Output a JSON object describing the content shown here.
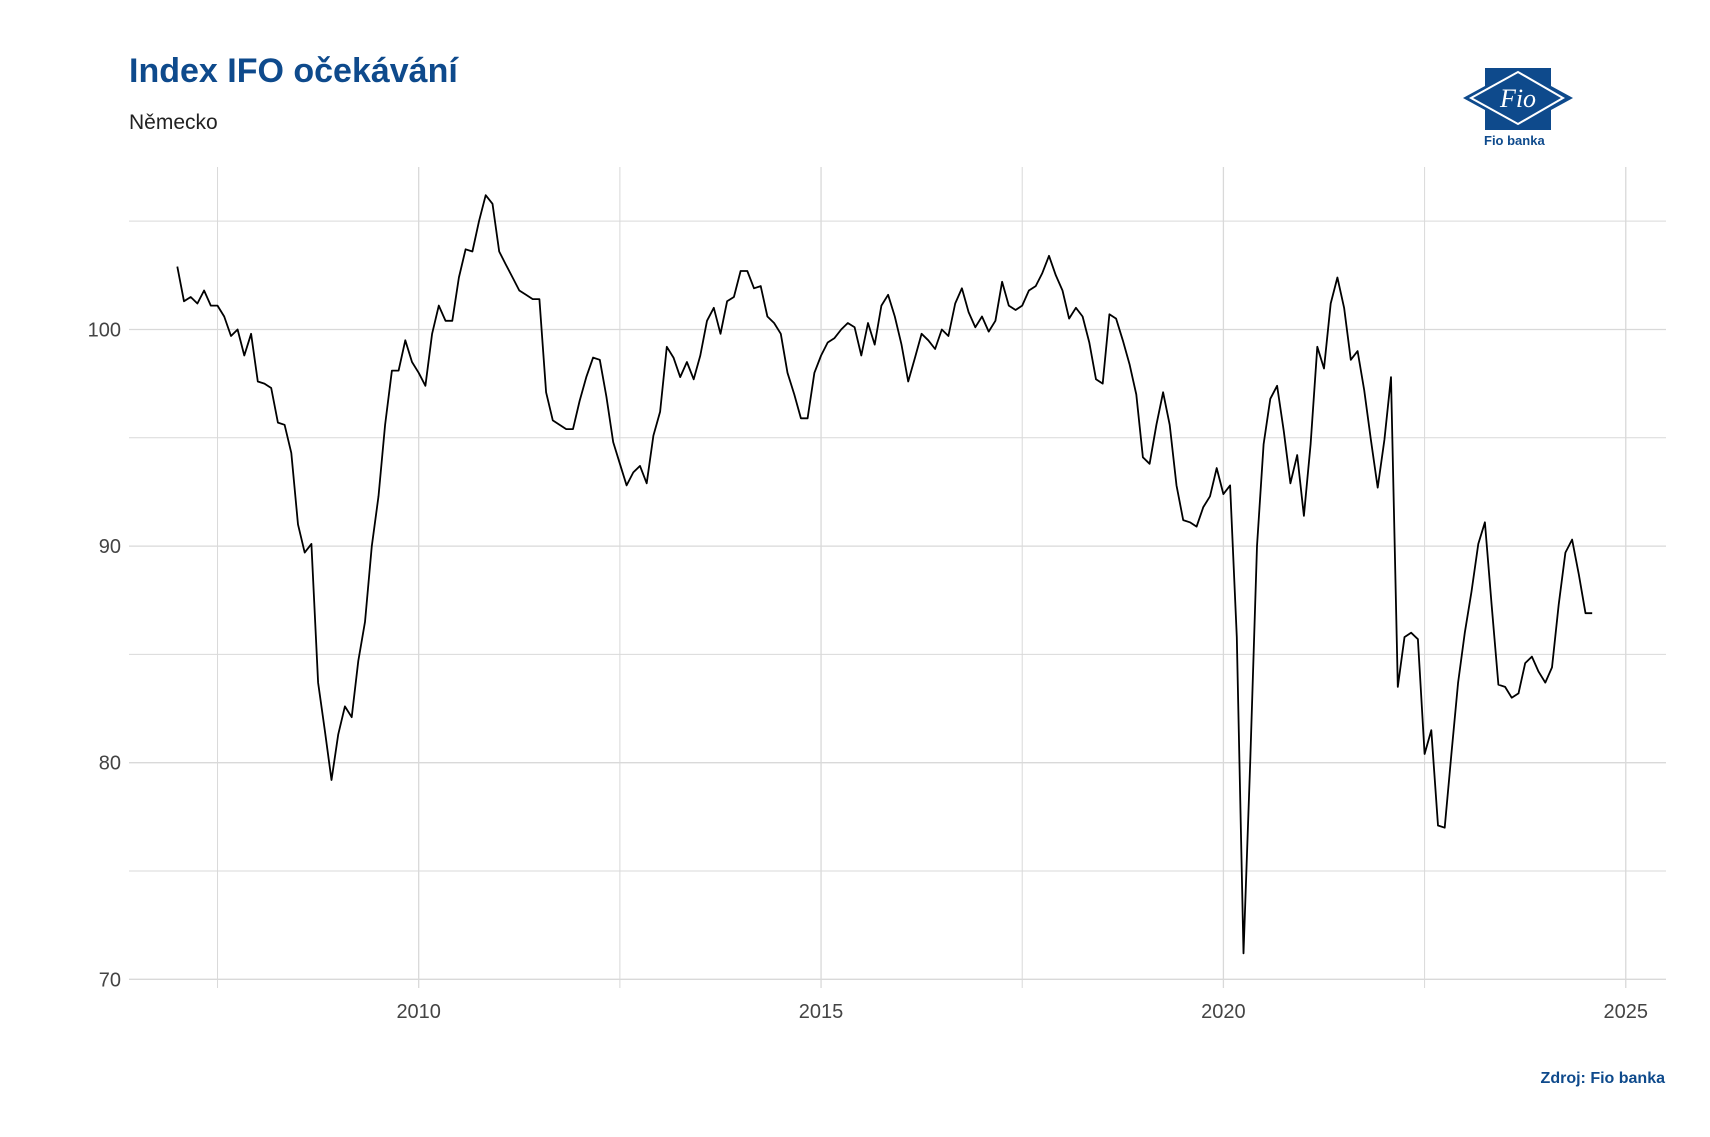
{
  "header": {
    "title": "Index IFO očekávání",
    "subtitle": "Německo"
  },
  "logo": {
    "text": "Fio banka",
    "mark": "Fio",
    "icon": "fio-banka-logo"
  },
  "footer": {
    "source": "Zdroj: Fio banka"
  },
  "colors": {
    "title": "#0e4a8c",
    "line": "#000000",
    "grid": "#d9d9d9"
  },
  "chart_data": {
    "type": "line",
    "title": "Index IFO očekávání",
    "subtitle": "Německo",
    "xlabel": "",
    "ylabel": "",
    "xlim": [
      2006.4,
      2025.5
    ],
    "ylim": [
      69.6,
      107.5
    ],
    "x_ticks": [
      2010,
      2015,
      2020,
      2025
    ],
    "y_ticks": [
      70,
      80,
      90,
      100
    ],
    "grid": true,
    "legend": "none",
    "x": [
      2007.0,
      2007.083,
      2007.167,
      2007.25,
      2007.333,
      2007.417,
      2007.5,
      2007.583,
      2007.667,
      2007.75,
      2007.833,
      2007.917,
      2008.0,
      2008.083,
      2008.167,
      2008.25,
      2008.333,
      2008.417,
      2008.5,
      2008.583,
      2008.667,
      2008.75,
      2008.833,
      2008.917,
      2009.0,
      2009.083,
      2009.167,
      2009.25,
      2009.333,
      2009.417,
      2009.5,
      2009.583,
      2009.667,
      2009.75,
      2009.833,
      2009.917,
      2010.0,
      2010.083,
      2010.167,
      2010.25,
      2010.333,
      2010.417,
      2010.5,
      2010.583,
      2010.667,
      2010.75,
      2010.833,
      2010.917,
      2011.0,
      2011.083,
      2011.167,
      2011.25,
      2011.333,
      2011.417,
      2011.5,
      2011.583,
      2011.667,
      2011.75,
      2011.833,
      2011.917,
      2012.0,
      2012.083,
      2012.167,
      2012.25,
      2012.333,
      2012.417,
      2012.5,
      2012.583,
      2012.667,
      2012.75,
      2012.833,
      2012.917,
      2013.0,
      2013.083,
      2013.167,
      2013.25,
      2013.333,
      2013.417,
      2013.5,
      2013.583,
      2013.667,
      2013.75,
      2013.833,
      2013.917,
      2014.0,
      2014.083,
      2014.167,
      2014.25,
      2014.333,
      2014.417,
      2014.5,
      2014.583,
      2014.667,
      2014.75,
      2014.833,
      2014.917,
      2015.0,
      2015.083,
      2015.167,
      2015.25,
      2015.333,
      2015.417,
      2015.5,
      2015.583,
      2015.667,
      2015.75,
      2015.833,
      2015.917,
      2016.0,
      2016.083,
      2016.167,
      2016.25,
      2016.333,
      2016.417,
      2016.5,
      2016.583,
      2016.667,
      2016.75,
      2016.833,
      2016.917,
      2017.0,
      2017.083,
      2017.167,
      2017.25,
      2017.333,
      2017.417,
      2017.5,
      2017.583,
      2017.667,
      2017.75,
      2017.833,
      2017.917,
      2018.0,
      2018.083,
      2018.167,
      2018.25,
      2018.333,
      2018.417,
      2018.5,
      2018.583,
      2018.667,
      2018.75,
      2018.833,
      2018.917,
      2019.0,
      2019.083,
      2019.167,
      2019.25,
      2019.333,
      2019.417,
      2019.5,
      2019.583,
      2019.667,
      2019.75,
      2019.833,
      2019.917,
      2020.0,
      2020.083,
      2020.167,
      2020.25,
      2020.333,
      2020.417,
      2020.5,
      2020.583,
      2020.667,
      2020.75,
      2020.833,
      2020.917,
      2021.0,
      2021.083,
      2021.167,
      2021.25,
      2021.333,
      2021.417,
      2021.5,
      2021.583,
      2021.667,
      2021.75,
      2021.833,
      2021.917,
      2022.0,
      2022.083,
      2022.167,
      2022.25,
      2022.333,
      2022.417,
      2022.5,
      2022.583,
      2022.667,
      2022.75,
      2022.833,
      2022.917,
      2023.0,
      2023.083,
      2023.167,
      2023.25,
      2023.333,
      2023.417,
      2023.5,
      2023.583,
      2023.667,
      2023.75,
      2023.833,
      2023.917,
      2024.0,
      2024.083,
      2024.167,
      2024.25,
      2024.333,
      2024.417,
      2024.5,
      2024.583
    ],
    "series": [
      {
        "values": [
          102.9,
          101.3,
          101.5,
          101.2,
          101.8,
          101.1,
          101.1,
          100.6,
          99.7,
          100.0,
          98.8,
          99.8,
          97.6,
          97.5,
          97.3,
          95.7,
          95.6,
          94.3,
          91.0,
          89.7,
          90.1,
          83.7,
          81.5,
          79.2,
          81.3,
          82.6,
          82.1,
          84.7,
          86.5,
          90.0,
          92.3,
          95.6,
          98.1,
          98.1,
          99.5,
          98.5,
          98.0,
          97.4,
          99.8,
          101.1,
          100.4,
          100.4,
          102.4,
          103.7,
          103.6,
          105.0,
          106.2,
          105.8,
          103.6,
          103.0,
          102.4,
          101.8,
          101.6,
          101.4,
          101.4,
          97.1,
          95.8,
          95.6,
          95.4,
          95.4,
          96.7,
          97.8,
          98.7,
          98.6,
          96.9,
          94.8,
          93.8,
          92.8,
          93.4,
          93.7,
          92.9,
          95.1,
          96.2,
          99.2,
          98.7,
          97.8,
          98.5,
          97.7,
          98.8,
          100.4,
          101.0,
          99.8,
          101.3,
          101.5,
          102.7,
          102.7,
          101.9,
          102.0,
          100.6,
          100.3,
          99.8,
          98.0,
          97.0,
          95.9,
          95.9,
          98.0,
          98.8,
          99.4,
          99.6,
          100.0,
          100.3,
          100.1,
          98.8,
          100.3,
          99.3,
          101.1,
          101.6,
          100.6,
          99.3,
          97.6,
          98.7,
          99.8,
          99.5,
          99.1,
          100.0,
          99.7,
          101.2,
          101.9,
          100.8,
          100.1,
          100.6,
          99.9,
          100.4,
          102.2,
          101.1,
          100.9,
          101.1,
          101.8,
          102.0,
          102.6,
          103.4,
          102.5,
          101.8,
          100.5,
          101.0,
          100.6,
          99.4,
          97.7,
          97.5,
          100.7,
          100.5,
          99.5,
          98.4,
          97.0,
          94.1,
          93.8,
          95.6,
          97.1,
          95.6,
          92.8,
          91.2,
          91.1,
          90.9,
          91.8,
          92.3,
          93.6,
          92.4,
          92.8,
          85.8,
          71.2,
          80.0,
          90.0,
          94.7,
          96.8,
          97.4,
          95.3,
          92.9,
          94.2,
          91.4,
          94.7,
          99.2,
          98.2,
          101.2,
          102.4,
          101.0,
          98.6,
          99.0,
          97.2,
          94.9,
          92.7,
          94.9,
          97.8,
          83.5,
          85.8,
          86.0,
          85.7,
          80.4,
          81.5,
          77.1,
          77.0,
          80.4,
          83.7,
          86.0,
          87.9,
          90.1,
          91.1,
          87.3,
          83.6,
          83.5,
          83.0,
          83.2,
          84.6,
          84.9,
          84.2,
          83.7,
          84.4,
          87.3,
          89.7,
          90.3,
          88.7,
          86.9,
          86.9
        ]
      }
    ]
  }
}
